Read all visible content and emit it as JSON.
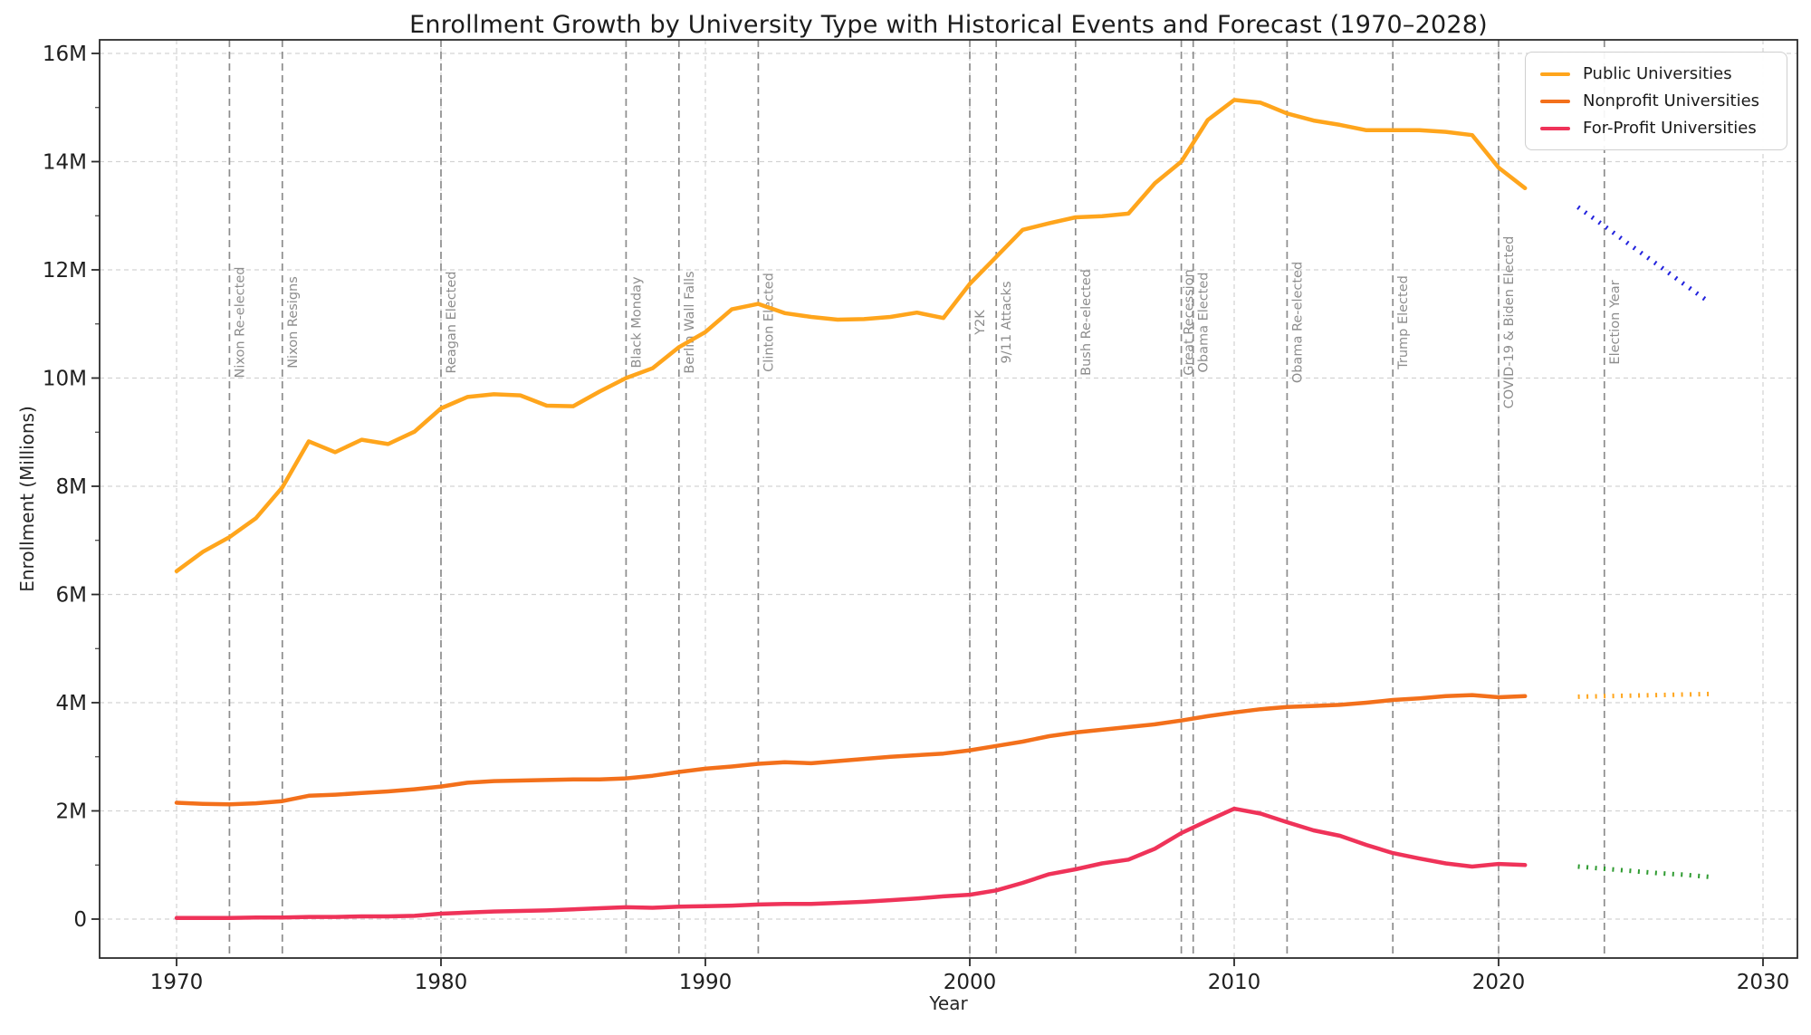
{
  "title": "Enrollment Growth by University Type with Historical Events and Forecast (1970–2028)",
  "axes": {
    "x_label": "Year",
    "y_label": "Enrollment (Millions)",
    "x_ticks": [
      1970,
      1980,
      1990,
      2000,
      2010,
      2020,
      2030
    ],
    "y_ticks": [
      {
        "label": "0",
        "value": 0
      },
      {
        "label": "2M",
        "value": 2
      },
      {
        "label": "4M",
        "value": 4
      },
      {
        "label": "6M",
        "value": 6
      },
      {
        "label": "8M",
        "value": 8
      },
      {
        "label": "10M",
        "value": 10
      },
      {
        "label": "12M",
        "value": 12
      },
      {
        "label": "14M",
        "value": 14
      },
      {
        "label": "16M",
        "value": 16
      }
    ],
    "grid": true
  },
  "colors": {
    "public": "#FFA51C",
    "nonprofit": "#F3701B",
    "forprofit": "#EF3359",
    "public_forecast": "#2222DD",
    "nonprofit_forecast": "#FFA51C",
    "forprofit_forecast": "#2E9B30",
    "event_line": "#8d8d8d",
    "gridline": "#d3d3d3",
    "spine": "#2b2b2b",
    "tick_text": "#1f1f1f"
  },
  "legend": {
    "position": "top-right",
    "items": [
      {
        "label": "Public Universities",
        "color": "#FFA51C"
      },
      {
        "label": "Nonprofit Universities",
        "color": "#F3701B"
      },
      {
        "label": "For-Profit Universities",
        "color": "#EF3359"
      }
    ]
  },
  "chart_data": {
    "type": "line",
    "x": [
      1970,
      1971,
      1972,
      1973,
      1974,
      1975,
      1976,
      1977,
      1978,
      1979,
      1980,
      1981,
      1982,
      1983,
      1984,
      1985,
      1986,
      1987,
      1988,
      1989,
      1990,
      1991,
      1992,
      1993,
      1994,
      1995,
      1996,
      1997,
      1998,
      1999,
      2000,
      2001,
      2002,
      2003,
      2004,
      2005,
      2006,
      2007,
      2008,
      2009,
      2010,
      2011,
      2012,
      2013,
      2014,
      2015,
      2016,
      2017,
      2018,
      2019,
      2020,
      2021
    ],
    "series": [
      {
        "name": "Public Universities",
        "color": "#FFA51C",
        "values": [
          6.43,
          6.79,
          7.06,
          7.41,
          7.98,
          8.83,
          8.63,
          8.86,
          8.78,
          9.01,
          9.44,
          9.65,
          9.7,
          9.68,
          9.49,
          9.48,
          9.75,
          10.0,
          10.18,
          10.57,
          10.85,
          11.27,
          11.37,
          11.2,
          11.13,
          11.08,
          11.09,
          11.13,
          11.21,
          11.11,
          11.74,
          12.24,
          12.74,
          12.86,
          12.97,
          12.99,
          13.04,
          13.6,
          14.0,
          14.77,
          15.14,
          15.09,
          14.89,
          14.76,
          14.68,
          14.58,
          14.58,
          14.58,
          14.55,
          14.49,
          13.89,
          13.51
        ]
      },
      {
        "name": "Nonprofit Universities",
        "color": "#F3701B",
        "values": [
          2.15,
          2.13,
          2.12,
          2.14,
          2.18,
          2.28,
          2.3,
          2.33,
          2.36,
          2.4,
          2.45,
          2.52,
          2.55,
          2.56,
          2.57,
          2.58,
          2.58,
          2.6,
          2.65,
          2.72,
          2.78,
          2.82,
          2.87,
          2.9,
          2.88,
          2.92,
          2.96,
          3.0,
          3.03,
          3.06,
          3.12,
          3.2,
          3.28,
          3.38,
          3.45,
          3.5,
          3.55,
          3.6,
          3.67,
          3.75,
          3.82,
          3.88,
          3.92,
          3.94,
          3.96,
          4.0,
          4.05,
          4.08,
          4.12,
          4.14,
          4.1,
          4.12
        ]
      },
      {
        "name": "For-Profit Universities",
        "color": "#EF3359",
        "values": [
          0.02,
          0.02,
          0.02,
          0.03,
          0.03,
          0.04,
          0.04,
          0.05,
          0.05,
          0.06,
          0.1,
          0.12,
          0.14,
          0.15,
          0.16,
          0.18,
          0.2,
          0.22,
          0.21,
          0.23,
          0.24,
          0.25,
          0.27,
          0.28,
          0.28,
          0.3,
          0.32,
          0.35,
          0.38,
          0.42,
          0.45,
          0.53,
          0.67,
          0.83,
          0.92,
          1.03,
          1.1,
          1.3,
          1.59,
          1.82,
          2.04,
          1.95,
          1.79,
          1.64,
          1.54,
          1.37,
          1.22,
          1.12,
          1.03,
          0.97,
          1.02,
          1.0
        ]
      }
    ],
    "forecast": {
      "x": [
        2023,
        2024,
        2025,
        2026,
        2027,
        2028
      ],
      "series": [
        {
          "name": "Public Universities Forecast",
          "color": "#2222DD",
          "values": [
            13.16,
            12.81,
            12.45,
            12.1,
            11.74,
            11.39
          ]
        },
        {
          "name": "Nonprofit Universities Forecast",
          "color": "#FFA51C",
          "values": [
            4.11,
            4.12,
            4.13,
            4.14,
            4.15,
            4.16
          ]
        },
        {
          "name": "For-Profit Universities Forecast",
          "color": "#2E9B30",
          "values": [
            0.97,
            0.93,
            0.89,
            0.85,
            0.82,
            0.78
          ]
        }
      ]
    },
    "events": [
      {
        "year": 1972,
        "label": "Nixon Re-elected"
      },
      {
        "year": 1974,
        "label": "Nixon Resigns"
      },
      {
        "year": 1980,
        "label": "Reagan Elected"
      },
      {
        "year": 1987,
        "label": "Black Monday"
      },
      {
        "year": 1989,
        "label": "Berlin Wall Falls"
      },
      {
        "year": 1992,
        "label": "Clinton Elected"
      },
      {
        "year": 2000,
        "label": "Y2K"
      },
      {
        "year": 2001,
        "label": "9/11 Attacks"
      },
      {
        "year": 2004,
        "label": "Bush Re-elected"
      },
      {
        "year": 2008,
        "label": "Great Recession"
      },
      {
        "year": 2008.45,
        "label": "Obama Elected"
      },
      {
        "year": 2012,
        "label": "Obama Re-elected"
      },
      {
        "year": 2016,
        "label": "Trump Elected"
      },
      {
        "year": 2020,
        "label": "COVID-19 & Biden Elected"
      },
      {
        "year": 2024,
        "label": "Election Year"
      }
    ]
  }
}
